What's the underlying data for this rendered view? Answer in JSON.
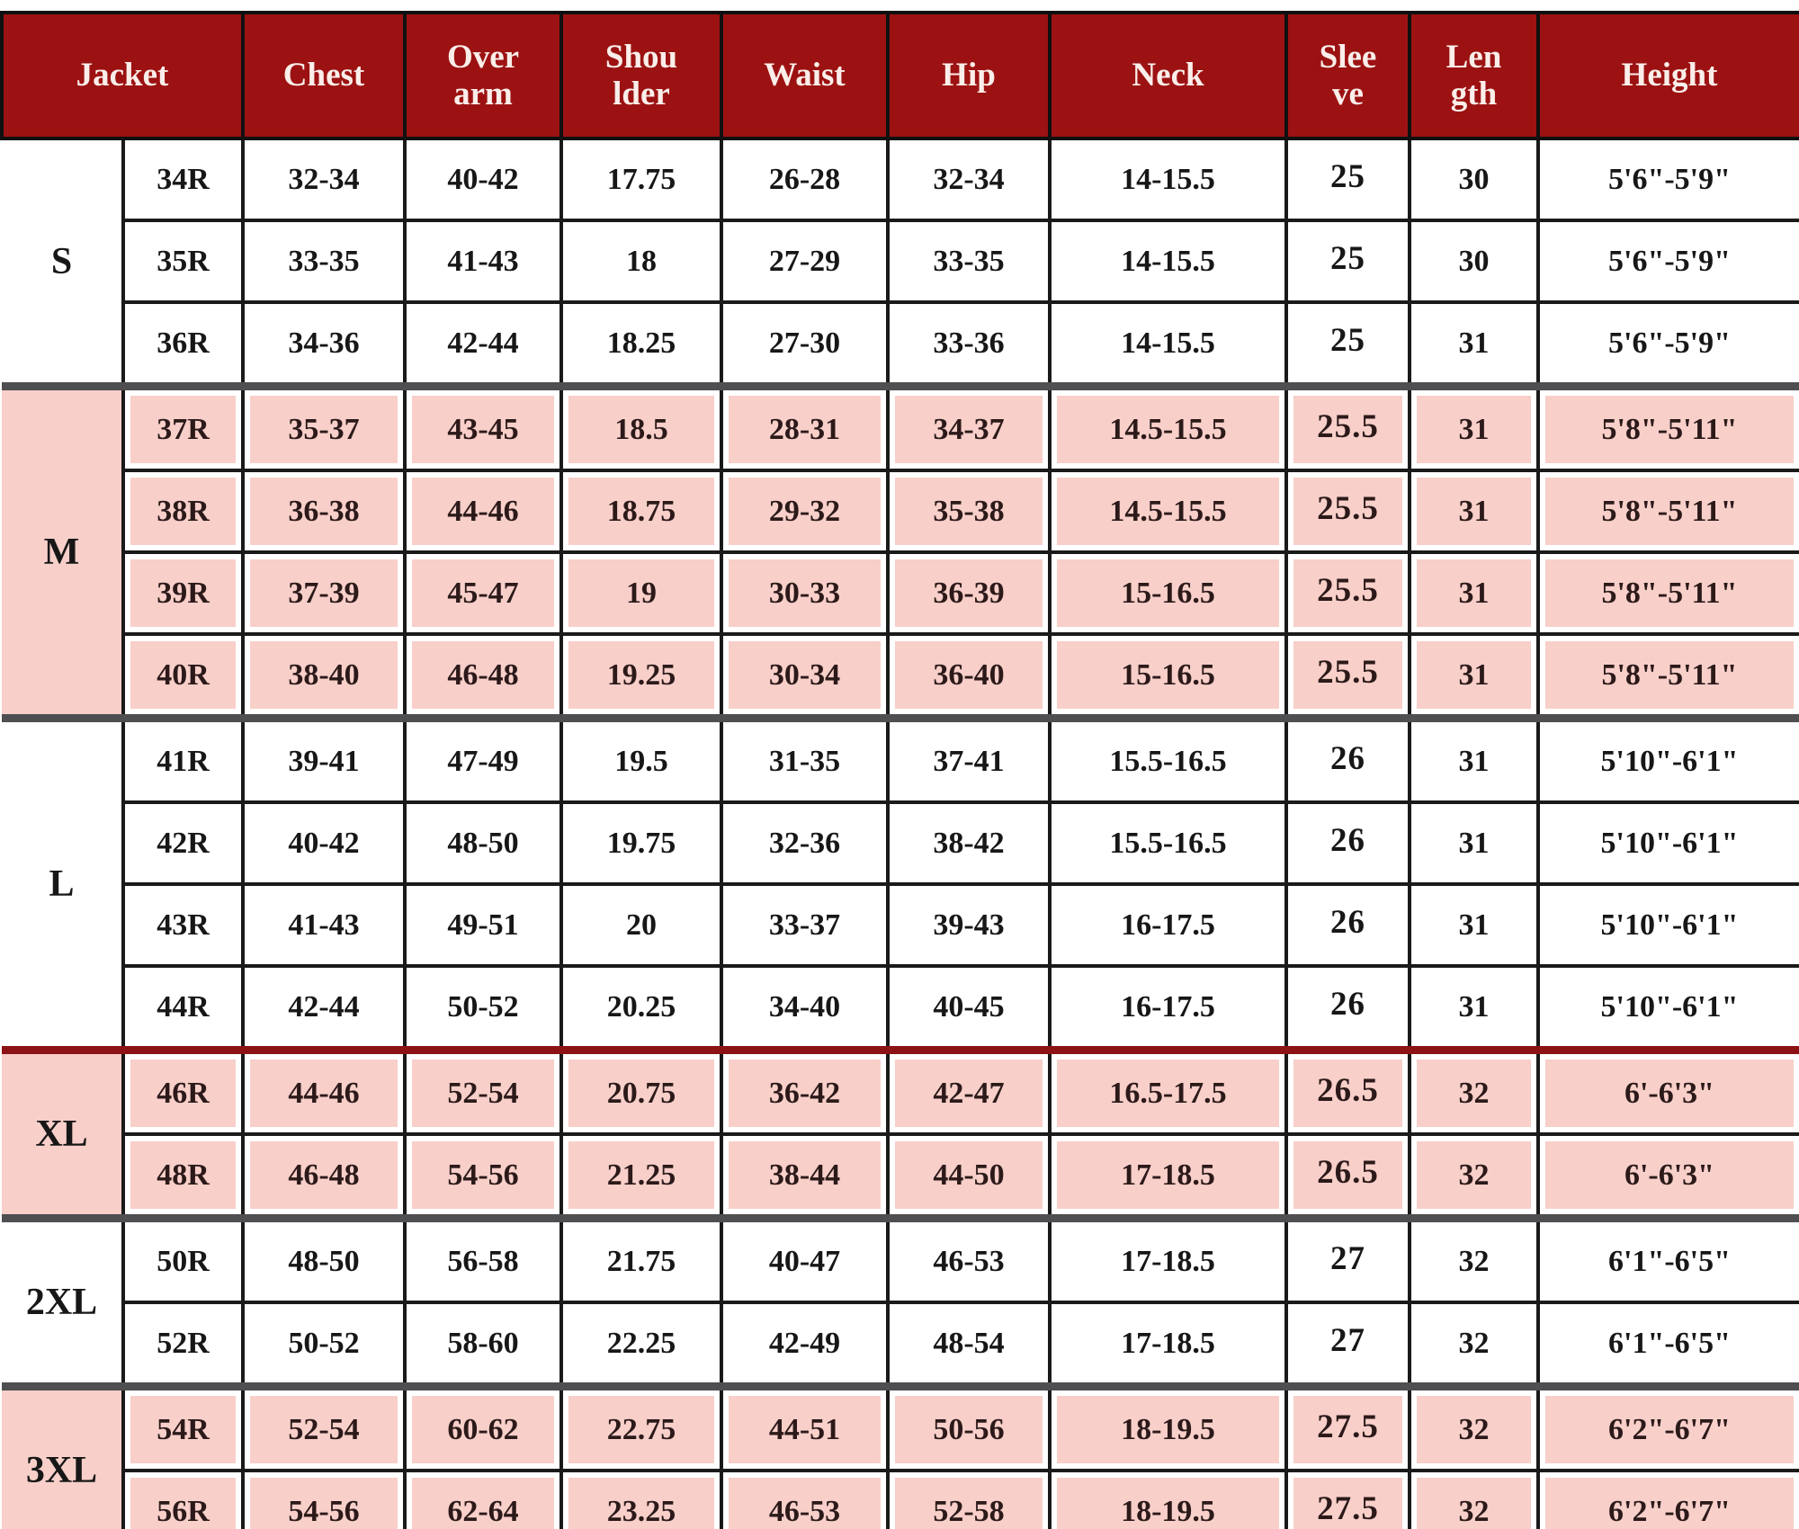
{
  "colors": {
    "header_bg": "#9c1212",
    "header_text": "#faeeea",
    "pink_band": "#f8cfc9",
    "cell_border": "#1a1a1a",
    "divider_gray": "#4f4f52",
    "divider_maroon": "#8c1216"
  },
  "chart_data": {
    "type": "table",
    "title": "Jacket size chart",
    "columns": [
      {
        "key": "jacket",
        "line1": "Jacket",
        "line2": ""
      },
      {
        "key": "chest",
        "line1": "Chest",
        "line2": ""
      },
      {
        "key": "overarm",
        "line1": "Over",
        "line2": "arm"
      },
      {
        "key": "shoulder",
        "line1": "Shou",
        "line2": "lder"
      },
      {
        "key": "waist",
        "line1": "Waist",
        "line2": ""
      },
      {
        "key": "hip",
        "line1": "Hip",
        "line2": ""
      },
      {
        "key": "neck",
        "line1": "Neck",
        "line2": ""
      },
      {
        "key": "sleeve",
        "line1": "Slee",
        "line2": "ve"
      },
      {
        "key": "length",
        "line1": "Len",
        "line2": "gth"
      },
      {
        "key": "height",
        "line1": "Height",
        "line2": ""
      }
    ],
    "groups": [
      {
        "size": "S",
        "shaded": false,
        "divider": "none",
        "rows": [
          [
            "34R",
            "32-34",
            "40-42",
            "17.75",
            "26-28",
            "32-34",
            "14-15.5",
            "25",
            "30",
            "5'6\"-5'9\""
          ],
          [
            "35R",
            "33-35",
            "41-43",
            "18",
            "27-29",
            "33-35",
            "14-15.5",
            "25",
            "30",
            "5'6\"-5'9\""
          ],
          [
            "36R",
            "34-36",
            "42-44",
            "18.25",
            "27-30",
            "33-36",
            "14-15.5",
            "25",
            "31",
            "5'6\"-5'9\""
          ]
        ]
      },
      {
        "size": "M",
        "shaded": true,
        "divider": "gray",
        "rows": [
          [
            "37R",
            "35-37",
            "43-45",
            "18.5",
            "28-31",
            "34-37",
            "14.5-15.5",
            "25.5",
            "31",
            "5'8\"-5'11\""
          ],
          [
            "38R",
            "36-38",
            "44-46",
            "18.75",
            "29-32",
            "35-38",
            "14.5-15.5",
            "25.5",
            "31",
            "5'8\"-5'11\""
          ],
          [
            "39R",
            "37-39",
            "45-47",
            "19",
            "30-33",
            "36-39",
            "15-16.5",
            "25.5",
            "31",
            "5'8\"-5'11\""
          ],
          [
            "40R",
            "38-40",
            "46-48",
            "19.25",
            "30-34",
            "36-40",
            "15-16.5",
            "25.5",
            "31",
            "5'8\"-5'11\""
          ]
        ]
      },
      {
        "size": "L",
        "shaded": false,
        "divider": "gray",
        "rows": [
          [
            "41R",
            "39-41",
            "47-49",
            "19.5",
            "31-35",
            "37-41",
            "15.5-16.5",
            "26",
            "31",
            "5'10\"-6'1\""
          ],
          [
            "42R",
            "40-42",
            "48-50",
            "19.75",
            "32-36",
            "38-42",
            "15.5-16.5",
            "26",
            "31",
            "5'10\"-6'1\""
          ],
          [
            "43R",
            "41-43",
            "49-51",
            "20",
            "33-37",
            "39-43",
            "16-17.5",
            "26",
            "31",
            "5'10\"-6'1\""
          ],
          [
            "44R",
            "42-44",
            "50-52",
            "20.25",
            "34-40",
            "40-45",
            "16-17.5",
            "26",
            "31",
            "5'10\"-6'1\""
          ]
        ]
      },
      {
        "size": "XL",
        "shaded": true,
        "divider": "maroon",
        "rows": [
          [
            "46R",
            "44-46",
            "52-54",
            "20.75",
            "36-42",
            "42-47",
            "16.5-17.5",
            "26.5",
            "32",
            "6'-6'3\""
          ],
          [
            "48R",
            "46-48",
            "54-56",
            "21.25",
            "38-44",
            "44-50",
            "17-18.5",
            "26.5",
            "32",
            "6'-6'3\""
          ]
        ]
      },
      {
        "size": "2XL",
        "shaded": false,
        "divider": "gray",
        "rows": [
          [
            "50R",
            "48-50",
            "56-58",
            "21.75",
            "40-47",
            "46-53",
            "17-18.5",
            "27",
            "32",
            "6'1\"-6'5\""
          ],
          [
            "52R",
            "50-52",
            "58-60",
            "22.25",
            "42-49",
            "48-54",
            "17-18.5",
            "27",
            "32",
            "6'1\"-6'5\""
          ]
        ]
      },
      {
        "size": "3XL",
        "shaded": true,
        "divider": "gray",
        "rows": [
          [
            "54R",
            "52-54",
            "60-62",
            "22.75",
            "44-51",
            "50-56",
            "18-19.5",
            "27.5",
            "32",
            "6'2\"-6'7\""
          ],
          [
            "56R",
            "54-56",
            "62-64",
            "23.25",
            "46-53",
            "52-58",
            "18-19.5",
            "27.5",
            "32",
            "6'2\"-6'7\""
          ]
        ]
      }
    ]
  }
}
